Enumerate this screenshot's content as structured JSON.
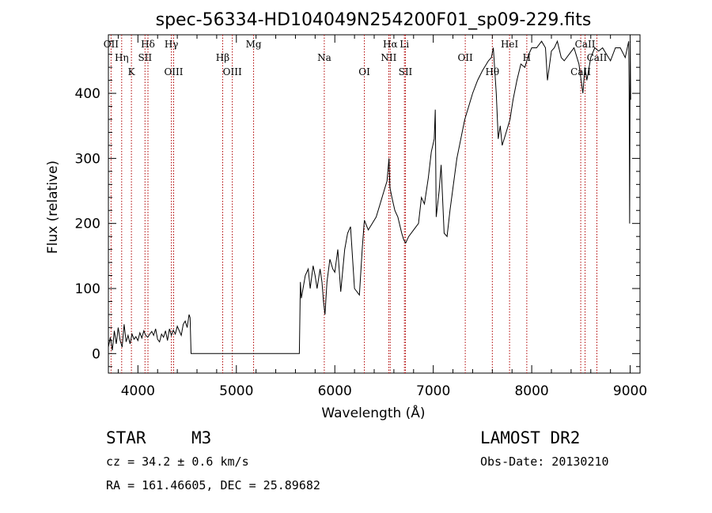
{
  "title": "spec-56334-HD104049N254200F01_sp09-229.fits",
  "info": {
    "object_class": "STAR",
    "subclass": "M3",
    "survey": "LAMOST DR2",
    "cz": "cz = 34.2 ± 0.6 km/s",
    "obs_date": "Obs-Date: 20130210",
    "coords": "RA = 161.46605, DEC =  25.89682"
  },
  "chart_data": {
    "type": "line",
    "title": "spec-56334-HD104049N254200F01_sp09-229.fits",
    "xlabel": "Wavelength (Å)",
    "ylabel": "Flux (relative)",
    "xlim": [
      3700,
      9100
    ],
    "ylim": [
      -30,
      490
    ],
    "xticks": [
      4000,
      5000,
      6000,
      7000,
      8000,
      9000
    ],
    "yticks": [
      0,
      100,
      200,
      300,
      400
    ],
    "grid": false,
    "series": [
      {
        "color": "#000000",
        "x": [
          3700,
          3720,
          3740,
          3760,
          3780,
          3800,
          3820,
          3840,
          3860,
          3880,
          3900,
          3920,
          3940,
          3960,
          3980,
          4000,
          4020,
          4040,
          4060,
          4080,
          4100,
          4120,
          4140,
          4160,
          4180,
          4200,
          4220,
          4240,
          4260,
          4280,
          4300,
          4320,
          4340,
          4360,
          4380,
          4400,
          4420,
          4440,
          4460,
          4480,
          4500,
          4520,
          4530,
          4540,
          5640,
          5650,
          5660,
          5700,
          5730,
          5750,
          5780,
          5800,
          5820,
          5850,
          5870,
          5885,
          5900,
          5920,
          5950,
          5980,
          6000,
          6030,
          6060,
          6100,
          6130,
          6160,
          6200,
          6250,
          6280,
          6300,
          6340,
          6380,
          6420,
          6460,
          6500,
          6530,
          6550,
          6560,
          6580,
          6610,
          6640,
          6680,
          6700,
          6720,
          6750,
          6800,
          6850,
          6880,
          6910,
          6950,
          6980,
          7010,
          7020,
          7030,
          7060,
          7080,
          7110,
          7140,
          7170,
          7200,
          7240,
          7280,
          7320,
          7360,
          7400,
          7450,
          7500,
          7560,
          7590,
          7610,
          7640,
          7660,
          7680,
          7700,
          7740,
          7780,
          7810,
          7850,
          7890,
          7930,
          7970,
          8000,
          8050,
          8100,
          8140,
          8160,
          8200,
          8230,
          8260,
          8300,
          8330,
          8380,
          8430,
          8480,
          8520,
          8540,
          8560,
          8600,
          8640,
          8680,
          8720,
          8760,
          8800,
          8850,
          8900,
          8950,
          8985,
          8990,
          8995,
          9000,
          9005
        ],
        "y": [
          10,
          25,
          5,
          35,
          15,
          40,
          20,
          10,
          45,
          18,
          28,
          15,
          30,
          22,
          26,
          20,
          32,
          24,
          35,
          28,
          25,
          30,
          34,
          28,
          38,
          22,
          18,
          30,
          25,
          35,
          20,
          38,
          28,
          36,
          30,
          42,
          35,
          28,
          45,
          50,
          40,
          60,
          55,
          0,
          0,
          110,
          85,
          120,
          130,
          100,
          135,
          120,
          100,
          130,
          110,
          80,
          60,
          110,
          145,
          130,
          125,
          160,
          95,
          160,
          185,
          195,
          100,
          90,
          165,
          205,
          190,
          200,
          210,
          230,
          250,
          265,
          300,
          255,
          240,
          220,
          210,
          185,
          175,
          170,
          180,
          190,
          200,
          240,
          230,
          270,
          310,
          330,
          375,
          210,
          250,
          290,
          185,
          180,
          220,
          255,
          300,
          330,
          360,
          380,
          400,
          420,
          435,
          450,
          455,
          470,
          400,
          330,
          350,
          320,
          340,
          360,
          390,
          420,
          445,
          440,
          460,
          470,
          470,
          480,
          470,
          420,
          465,
          470,
          480,
          455,
          450,
          460,
          470,
          445,
          400,
          440,
          420,
          455,
          470,
          465,
          470,
          460,
          450,
          470,
          470,
          455,
          480,
          400,
          200,
          480,
          390
        ]
      }
    ],
    "spectral_lines": [
      {
        "label": "OII",
        "wavelength": 3727
      },
      {
        "label": "Hη",
        "wavelength": 3835
      },
      {
        "label": "K",
        "wavelength": 3934
      },
      {
        "label": "Hδ",
        "wavelength": 4102
      },
      {
        "label": "SII",
        "wavelength": 4072
      },
      {
        "label": "OIII",
        "wavelength": 4363
      },
      {
        "label": "Hγ",
        "wavelength": 4340
      },
      {
        "label": "Hβ",
        "wavelength": 4861
      },
      {
        "label": "OIII",
        "wavelength": 4959
      },
      {
        "label": "Mg",
        "wavelength": 5175
      },
      {
        "label": "Na",
        "wavelength": 5893
      },
      {
        "label": "OI",
        "wavelength": 6300
      },
      {
        "label": "Hα",
        "wavelength": 6563
      },
      {
        "label": "NII",
        "wavelength": 6548
      },
      {
        "label": "SII",
        "wavelength": 6717
      },
      {
        "label": "Li",
        "wavelength": 6707
      },
      {
        "label": "OII",
        "wavelength": 7325
      },
      {
        "label": "Hθ",
        "wavelength": 7600
      },
      {
        "label": "HeI",
        "wavelength": 7775
      },
      {
        "label": "H",
        "wavelength": 7950
      },
      {
        "label": "CaII",
        "wavelength": 8498
      },
      {
        "label": "CaII",
        "wavelength": 8542
      },
      {
        "label": "CaII",
        "wavelength": 8662
      }
    ]
  }
}
